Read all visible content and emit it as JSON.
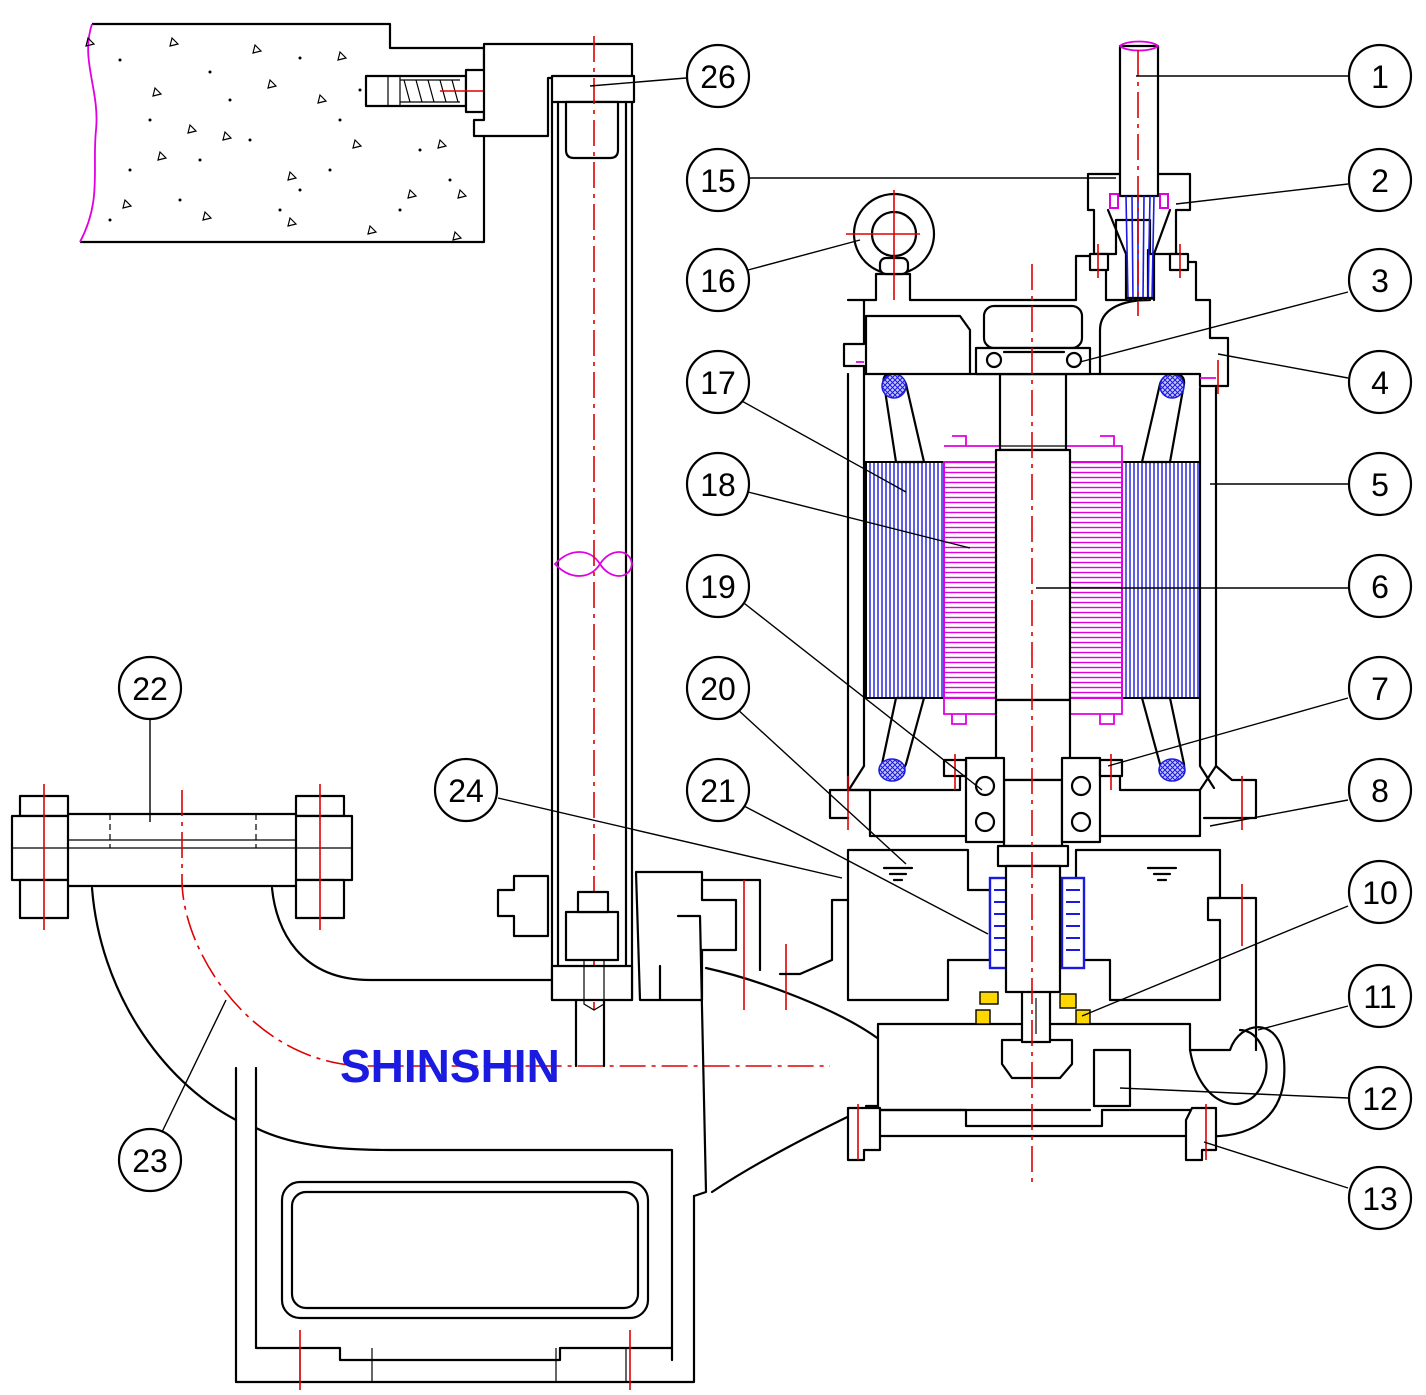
{
  "brand": "SHINSHIN",
  "callouts": [
    "1",
    "2",
    "3",
    "4",
    "5",
    "6",
    "7",
    "8",
    "10",
    "11",
    "12",
    "13",
    "15",
    "16",
    "17",
    "18",
    "19",
    "20",
    "21",
    "22",
    "23",
    "24",
    "26"
  ],
  "colors": {
    "outline": "#000000",
    "centerline": "#e00000",
    "magenta": "#e000e0",
    "stator_blue": "#1a1ae0",
    "brand_blue": "#1a1ae0"
  }
}
